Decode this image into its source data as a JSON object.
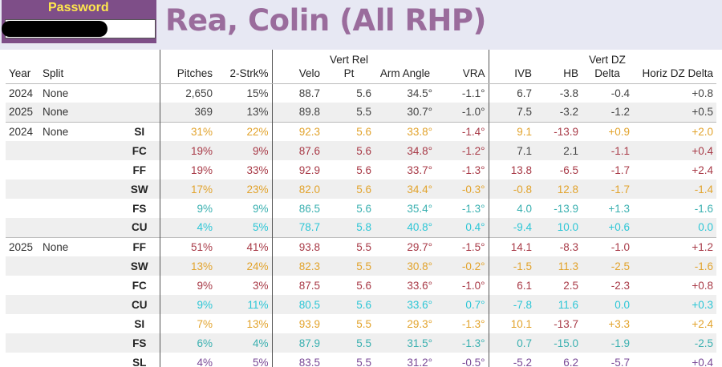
{
  "password": {
    "label": "Password",
    "value": ""
  },
  "title": "Rea, Colin (All RHP)",
  "columns": [
    "Year",
    "Split",
    "",
    "Pitches",
    "2-Strk%",
    "Velo",
    "Vert Rel Pt",
    "Arm Angle",
    "VRA",
    "IVB",
    "HB",
    "Vert DZ Delta",
    "Horiz DZ Delta"
  ],
  "colors": {
    "red": "#a83a47",
    "orange": "#e2a32c",
    "teal": "#3ab0b0",
    "purple": "#7a4a97",
    "cyan": "#2cc6d6",
    "dark": "#444444"
  },
  "rows": [
    {
      "year": "2024",
      "split": "None",
      "pt": "",
      "alt": false,
      "sep": false,
      "colors": [
        "dark",
        "dark",
        "dark",
        "dark",
        "dark",
        "dark",
        "dark",
        "dark",
        "dark",
        "dark"
      ],
      "cells": [
        "2,650",
        "15%",
        "88.7",
        "5.6",
        "34.5°",
        "-1.1°",
        "6.7",
        "-3.8",
        "-0.4",
        "+0.8"
      ]
    },
    {
      "year": "2025",
      "split": "None",
      "pt": "",
      "alt": true,
      "sep": false,
      "colors": [
        "dark",
        "dark",
        "dark",
        "dark",
        "dark",
        "dark",
        "dark",
        "dark",
        "dark",
        "dark"
      ],
      "cells": [
        "369",
        "13%",
        "89.8",
        "5.5",
        "30.7°",
        "-1.0°",
        "7.5",
        "-3.2",
        "-1.2",
        "+0.5"
      ]
    },
    {
      "year": "2024",
      "split": "None",
      "pt": "SI",
      "alt": false,
      "sep": true,
      "colors": [
        "orange",
        "orange",
        "orange",
        "orange",
        "orange",
        "red",
        "orange",
        "red",
        "orange",
        "orange"
      ],
      "cells": [
        "31%",
        "22%",
        "92.3",
        "5.6",
        "33.8°",
        "-1.4°",
        "9.1",
        "-13.9",
        "+0.9",
        "+2.0"
      ]
    },
    {
      "year": "",
      "split": "",
      "pt": "FC",
      "alt": true,
      "sep": false,
      "colors": [
        "red",
        "red",
        "red",
        "red",
        "red",
        "red",
        "dark",
        "dark",
        "red",
        "red"
      ],
      "cells": [
        "19%",
        "9%",
        "87.6",
        "5.6",
        "34.8°",
        "-1.2°",
        "7.1",
        "2.1",
        "-1.1",
        "+0.4"
      ]
    },
    {
      "year": "",
      "split": "",
      "pt": "FF",
      "alt": false,
      "sep": false,
      "colors": [
        "red",
        "red",
        "red",
        "red",
        "red",
        "red",
        "red",
        "red",
        "red",
        "red"
      ],
      "cells": [
        "19%",
        "33%",
        "92.9",
        "5.6",
        "33.7°",
        "-1.3°",
        "13.8",
        "-6.5",
        "-1.7",
        "+2.4"
      ]
    },
    {
      "year": "",
      "split": "",
      "pt": "SW",
      "alt": true,
      "sep": false,
      "colors": [
        "orange",
        "orange",
        "orange",
        "orange",
        "orange",
        "orange",
        "orange",
        "orange",
        "orange",
        "orange"
      ],
      "cells": [
        "17%",
        "23%",
        "82.0",
        "5.6",
        "34.4°",
        "-0.3°",
        "-0.8",
        "12.8",
        "-1.7",
        "-1.4"
      ]
    },
    {
      "year": "",
      "split": "",
      "pt": "FS",
      "alt": false,
      "sep": false,
      "colors": [
        "teal",
        "teal",
        "teal",
        "teal",
        "teal",
        "teal",
        "teal",
        "teal",
        "teal",
        "teal"
      ],
      "cells": [
        "9%",
        "9%",
        "86.5",
        "5.6",
        "35.4°",
        "-1.3°",
        "4.0",
        "-13.9",
        "+1.3",
        "-1.6"
      ]
    },
    {
      "year": "",
      "split": "",
      "pt": "CU",
      "alt": true,
      "sep": false,
      "colors": [
        "cyan",
        "cyan",
        "cyan",
        "cyan",
        "cyan",
        "cyan",
        "cyan",
        "cyan",
        "cyan",
        "cyan"
      ],
      "cells": [
        "4%",
        "5%",
        "78.7",
        "5.8",
        "40.8°",
        "0.4°",
        "-9.4",
        "10.0",
        "+0.6",
        "0.0"
      ]
    },
    {
      "year": "2025",
      "split": "None",
      "pt": "FF",
      "alt": false,
      "sep": true,
      "colors": [
        "red",
        "red",
        "red",
        "red",
        "red",
        "red",
        "red",
        "red",
        "red",
        "red"
      ],
      "cells": [
        "51%",
        "41%",
        "93.8",
        "5.5",
        "29.7°",
        "-1.5°",
        "14.1",
        "-8.3",
        "-1.0",
        "+1.2"
      ]
    },
    {
      "year": "",
      "split": "",
      "pt": "SW",
      "alt": true,
      "sep": false,
      "colors": [
        "orange",
        "orange",
        "orange",
        "orange",
        "orange",
        "orange",
        "orange",
        "orange",
        "orange",
        "orange"
      ],
      "cells": [
        "13%",
        "24%",
        "82.3",
        "5.5",
        "30.8°",
        "-0.2°",
        "-1.5",
        "11.3",
        "-2.5",
        "-1.6"
      ]
    },
    {
      "year": "",
      "split": "",
      "pt": "FC",
      "alt": false,
      "sep": false,
      "colors": [
        "red",
        "red",
        "red",
        "red",
        "red",
        "red",
        "red",
        "red",
        "red",
        "red"
      ],
      "cells": [
        "9%",
        "3%",
        "87.5",
        "5.6",
        "33.6°",
        "-1.0°",
        "6.1",
        "2.5",
        "-2.3",
        "+0.8"
      ]
    },
    {
      "year": "",
      "split": "",
      "pt": "CU",
      "alt": true,
      "sep": false,
      "colors": [
        "cyan",
        "cyan",
        "cyan",
        "cyan",
        "cyan",
        "cyan",
        "cyan",
        "cyan",
        "cyan",
        "cyan"
      ],
      "cells": [
        "9%",
        "11%",
        "80.5",
        "5.6",
        "33.6°",
        "0.7°",
        "-7.8",
        "11.6",
        "0.0",
        "+0.3"
      ]
    },
    {
      "year": "",
      "split": "",
      "pt": "SI",
      "alt": false,
      "sep": false,
      "colors": [
        "orange",
        "orange",
        "orange",
        "orange",
        "orange",
        "orange",
        "orange",
        "red",
        "orange",
        "orange"
      ],
      "cells": [
        "7%",
        "13%",
        "93.9",
        "5.5",
        "29.3°",
        "-1.3°",
        "10.1",
        "-13.7",
        "+3.3",
        "+2.4"
      ]
    },
    {
      "year": "",
      "split": "",
      "pt": "FS",
      "alt": true,
      "sep": false,
      "colors": [
        "teal",
        "teal",
        "teal",
        "teal",
        "teal",
        "teal",
        "teal",
        "teal",
        "teal",
        "teal"
      ],
      "cells": [
        "6%",
        "4%",
        "87.9",
        "5.5",
        "31.5°",
        "-1.3°",
        "0.7",
        "-15.0",
        "-1.9",
        "-2.5"
      ]
    },
    {
      "year": "",
      "split": "",
      "pt": "SL",
      "alt": false,
      "sep": false,
      "colors": [
        "purple",
        "purple",
        "purple",
        "purple",
        "purple",
        "purple",
        "purple",
        "purple",
        "purple",
        "purple"
      ],
      "cells": [
        "4%",
        "5%",
        "83.5",
        "5.5",
        "31.2°",
        "-0.5°",
        "-5.2",
        "6.2",
        "-5.7",
        "+0.4"
      ]
    }
  ]
}
